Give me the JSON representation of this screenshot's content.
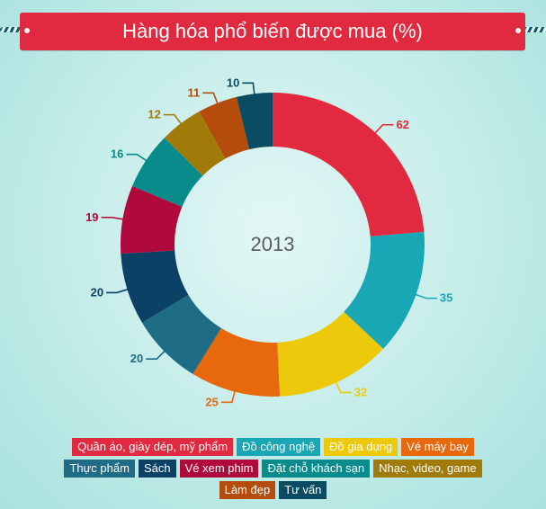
{
  "title": "Hàng hóa phổ biến được mua (%)",
  "chart_data": {
    "type": "pie",
    "donut": true,
    "center_label": "2013",
    "legend_position": "bottom",
    "categories": [
      "Quần áo, giày dép, mỹ phẩm",
      "Đồ công nghệ",
      "Đồ gia dụng",
      "Vé máy bay",
      "Thực phẩm",
      "Sách",
      "Vé xem phim",
      "Đặt chỗ khách sạn",
      "Nhạc, video, game",
      "Làm đẹp",
      "Tư vấn"
    ],
    "values": [
      62,
      35,
      32,
      25,
      20,
      20,
      19,
      16,
      12,
      11,
      10
    ],
    "colors": [
      "#e1293f",
      "#19a6b5",
      "#ecc90a",
      "#e8680e",
      "#1f6c87",
      "#0c4166",
      "#b0093b",
      "#0a8b8b",
      "#a17b0a",
      "#b44d0c",
      "#0c4c63"
    ]
  },
  "legend": {
    "rows": [
      [
        0,
        1,
        2,
        3
      ],
      [
        4,
        5,
        6,
        7,
        8
      ],
      [
        9,
        10
      ]
    ]
  }
}
